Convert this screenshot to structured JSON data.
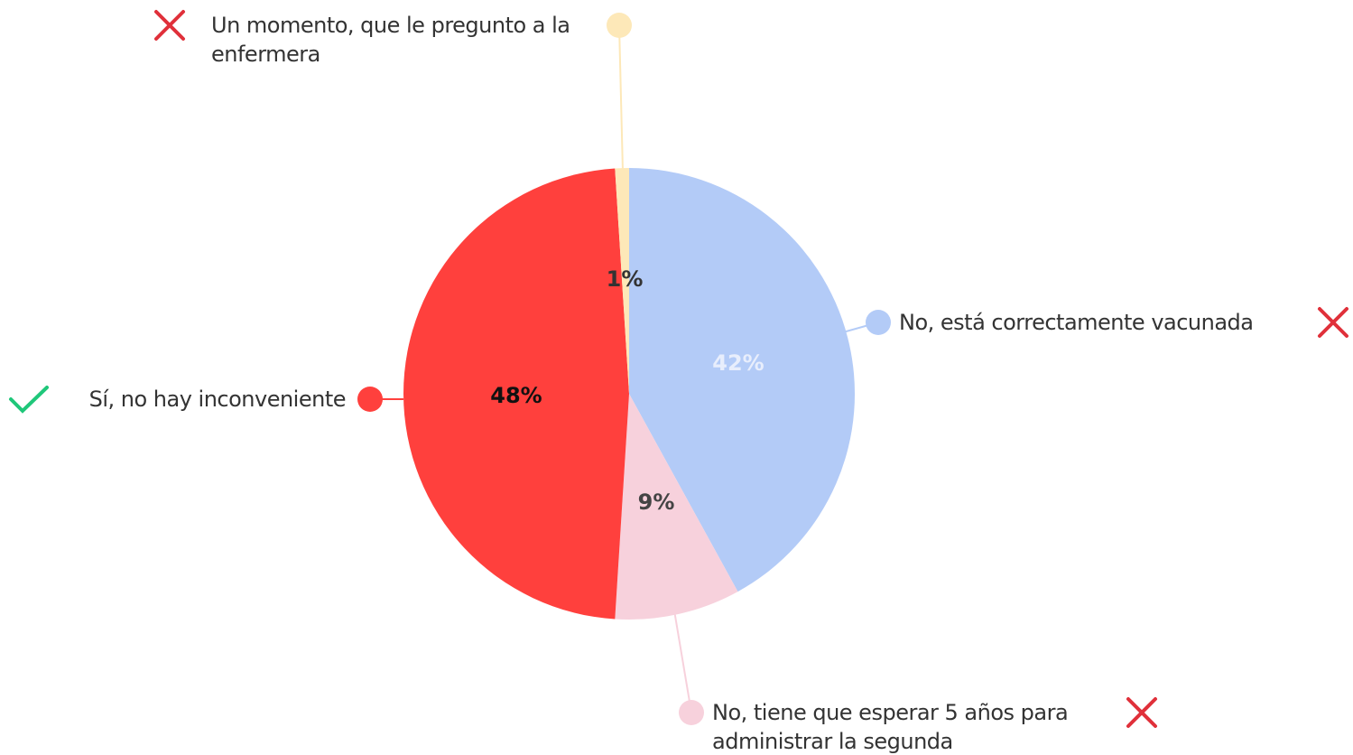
{
  "chart_data": {
    "type": "pie",
    "categories": [
      "No, está correctamente vacunada",
      "No, tiene que esperar 5 años para administrar la segunda",
      "Sí, no hay inconveniente",
      "Un momento, que le pregunto a la enfermera"
    ],
    "values": [
      42,
      9,
      48,
      1
    ],
    "value_labels": [
      "42%",
      "9%",
      "48%",
      "1%"
    ],
    "colors": [
      "#b3cbf7",
      "#f7d1dc",
      "#ff403d",
      "#fde8b8"
    ],
    "correct": [
      false,
      false,
      true,
      false
    ]
  }
}
